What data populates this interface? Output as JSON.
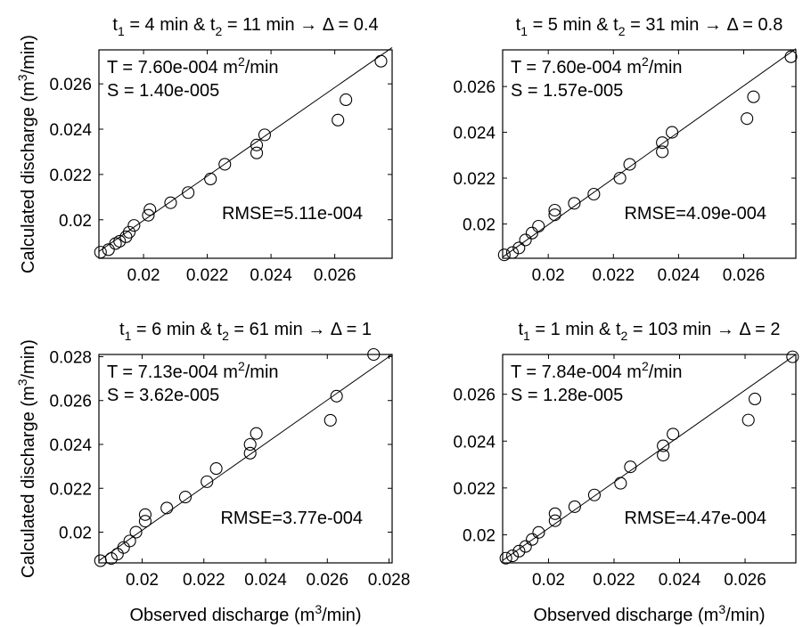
{
  "figure": {
    "xlabel_main": "Observed discharge (m",
    "xlabel_sup": "3",
    "xlabel_end": "/min)",
    "ylabel_main": "Calculated discharge (m",
    "ylabel_sup": "3",
    "ylabel_end": "/min)"
  },
  "chart_data": [
    {
      "type": "scatter",
      "title": {
        "t1": "4",
        "t2": "11",
        "delta": "0.4"
      },
      "T": "7.60e-004",
      "S": "1.40e-005",
      "rmse": "RMSE=5.11e-004",
      "xlim": [
        0.0186,
        0.0278
      ],
      "ylim": [
        0.0183,
        0.0275
      ],
      "xticks": [
        "0.02",
        "0.022",
        "0.024",
        "0.026"
      ],
      "xtick_values": [
        0.02,
        0.022,
        0.024,
        0.026
      ],
      "yticks": [
        "0.02",
        "0.022",
        "0.024",
        "0.026"
      ],
      "ytick_values": [
        0.02,
        0.022,
        0.024,
        0.026
      ],
      "show_ylabel": true,
      "show_xlabel": false,
      "points": [
        [
          0.01865,
          0.01857
        ],
        [
          0.0189,
          0.01868
        ],
        [
          0.01912,
          0.01895
        ],
        [
          0.01925,
          0.01905
        ],
        [
          0.01945,
          0.01925
        ],
        [
          0.01955,
          0.01945
        ],
        [
          0.0197,
          0.01975
        ],
        [
          0.02015,
          0.0202
        ],
        [
          0.0202,
          0.02045
        ],
        [
          0.02085,
          0.02075
        ],
        [
          0.0214,
          0.0212
        ],
        [
          0.0221,
          0.0218
        ],
        [
          0.02255,
          0.02245
        ],
        [
          0.02355,
          0.0233
        ],
        [
          0.02355,
          0.02295
        ],
        [
          0.0238,
          0.02375
        ],
        [
          0.0261,
          0.0244
        ],
        [
          0.02635,
          0.0253
        ],
        [
          0.02745,
          0.027
        ]
      ],
      "line": [
        [
          0.0186,
          0.0186
        ],
        [
          0.0278,
          0.0276
        ]
      ]
    },
    {
      "type": "scatter",
      "title": {
        "t1": "5",
        "t2": "31",
        "delta": "0.8"
      },
      "T": "7.60e-004",
      "S": "1.57e-005",
      "rmse": "RMSE=4.09e-004",
      "xlim": [
        0.0186,
        0.0276
      ],
      "ylim": [
        0.0185,
        0.0276
      ],
      "xticks": [
        "0.02",
        "0.022",
        "0.024",
        "0.026"
      ],
      "xtick_values": [
        0.02,
        0.022,
        0.024,
        0.026
      ],
      "yticks": [
        "0.02",
        "0.022",
        "0.024",
        "0.026"
      ],
      "ytick_values": [
        0.02,
        0.022,
        0.024,
        0.026
      ],
      "show_ylabel": false,
      "show_xlabel": false,
      "points": [
        [
          0.01865,
          0.01865
        ],
        [
          0.0189,
          0.01875
        ],
        [
          0.0191,
          0.01895
        ],
        [
          0.0193,
          0.0193
        ],
        [
          0.0195,
          0.0196
        ],
        [
          0.0197,
          0.0199
        ],
        [
          0.0202,
          0.0204
        ],
        [
          0.0202,
          0.0206
        ],
        [
          0.0208,
          0.0209
        ],
        [
          0.0214,
          0.0213
        ],
        [
          0.0222,
          0.022
        ],
        [
          0.0225,
          0.0226
        ],
        [
          0.0235,
          0.02315
        ],
        [
          0.0235,
          0.02355
        ],
        [
          0.0238,
          0.024
        ],
        [
          0.0261,
          0.0246
        ],
        [
          0.0263,
          0.02555
        ],
        [
          0.02745,
          0.0273
        ]
      ],
      "line": [
        [
          0.0186,
          0.01855
        ],
        [
          0.0276,
          0.02765
        ]
      ]
    },
    {
      "type": "scatter",
      "title": {
        "t1": "6",
        "t2": "61",
        "delta": "1"
      },
      "T": "7.13e-004",
      "S": "3.62e-005",
      "rmse": "RMSE=3.77e-004",
      "xlim": [
        0.0186,
        0.0281
      ],
      "ylim": [
        0.0186,
        0.0281
      ],
      "xticks": [
        "0.02",
        "0.022",
        "0.024",
        "0.026",
        "0.028"
      ],
      "xtick_values": [
        0.02,
        0.022,
        0.024,
        0.026,
        0.028
      ],
      "yticks": [
        "0.02",
        "0.022",
        "0.024",
        "0.026",
        "0.028"
      ],
      "ytick_values": [
        0.02,
        0.022,
        0.024,
        0.026,
        0.028
      ],
      "show_ylabel": true,
      "show_xlabel": true,
      "points": [
        [
          0.01865,
          0.0187
        ],
        [
          0.019,
          0.0188
        ],
        [
          0.0192,
          0.019
        ],
        [
          0.0194,
          0.0193
        ],
        [
          0.0196,
          0.0196
        ],
        [
          0.0198,
          0.02
        ],
        [
          0.0201,
          0.0205
        ],
        [
          0.0201,
          0.0208
        ],
        [
          0.0208,
          0.0211
        ],
        [
          0.0214,
          0.0216
        ],
        [
          0.0221,
          0.0223
        ],
        [
          0.0224,
          0.0229
        ],
        [
          0.0235,
          0.0236
        ],
        [
          0.0235,
          0.024
        ],
        [
          0.0237,
          0.0245
        ],
        [
          0.0261,
          0.0251
        ],
        [
          0.0263,
          0.0262
        ],
        [
          0.0275,
          0.0281
        ]
      ],
      "line": [
        [
          0.0186,
          0.0187
        ],
        [
          0.0281,
          0.0281
        ]
      ]
    },
    {
      "type": "scatter",
      "title": {
        "t1": "1",
        "t2": "103",
        "delta": "2"
      },
      "T": "7.84e-004",
      "S": "1.28e-005",
      "rmse": "RMSE=4.47e-004",
      "xlim": [
        0.0186,
        0.02755
      ],
      "ylim": [
        0.0188,
        0.0277
      ],
      "xticks": [
        "0.02",
        "0.022",
        "0.024",
        "0.026"
      ],
      "xtick_values": [
        0.02,
        0.022,
        0.024,
        0.026
      ],
      "yticks": [
        "0.02",
        "0.022",
        "0.024",
        "0.026"
      ],
      "ytick_values": [
        0.02,
        0.022,
        0.024,
        0.026
      ],
      "show_ylabel": false,
      "show_xlabel": true,
      "points": [
        [
          0.0187,
          0.019
        ],
        [
          0.0189,
          0.0191
        ],
        [
          0.0191,
          0.0193
        ],
        [
          0.0193,
          0.0195
        ],
        [
          0.0195,
          0.0198
        ],
        [
          0.0197,
          0.0201
        ],
        [
          0.0202,
          0.0206
        ],
        [
          0.0202,
          0.0209
        ],
        [
          0.0208,
          0.0212
        ],
        [
          0.0214,
          0.0217
        ],
        [
          0.0222,
          0.0222
        ],
        [
          0.0225,
          0.0229
        ],
        [
          0.0235,
          0.0234
        ],
        [
          0.0235,
          0.0238
        ],
        [
          0.0238,
          0.0243
        ],
        [
          0.0261,
          0.0249
        ],
        [
          0.0263,
          0.0258
        ],
        [
          0.02745,
          0.0276
        ]
      ],
      "line": [
        [
          0.0186,
          0.0189
        ],
        [
          0.02755,
          0.0277
        ]
      ]
    }
  ]
}
